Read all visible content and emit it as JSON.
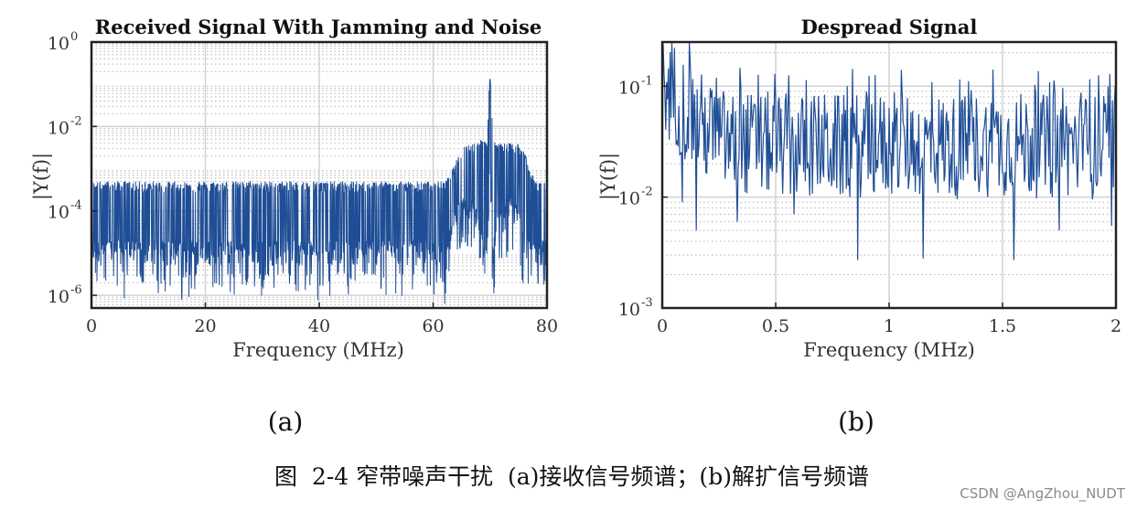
{
  "chart_data": [
    {
      "type": "line",
      "title": "Received Signal With Jamming and Noise",
      "xlabel": "Frequency (MHz)",
      "ylabel": "|Y(f)|",
      "xlim": [
        0,
        80
      ],
      "ylim": [
        5e-07,
        1
      ],
      "yscale": "log",
      "grid": true,
      "minor_grid": true,
      "xticks": [
        0,
        20,
        40,
        60,
        80
      ],
      "xtick_labels": [
        "0",
        "20",
        "40",
        "60",
        "80"
      ],
      "yticks": [
        1e-06,
        0.0001,
        0.01,
        1
      ],
      "ytick_bases": [
        "10",
        "10",
        "10",
        "10"
      ],
      "ytick_exps": [
        "-6",
        "-4",
        "-2",
        "0"
      ],
      "series_color": "#1f4e96",
      "series": [
        {
          "x": [
            0,
            5,
            10,
            15,
            20,
            25,
            30,
            35,
            40,
            45,
            50,
            55,
            60,
            62,
            63,
            64,
            65,
            66,
            67,
            68,
            69,
            69.5,
            69.8,
            70,
            70.2,
            70.5,
            71,
            72,
            73,
            74,
            75,
            76,
            77,
            78,
            80
          ],
          "upper": [
            0.0005,
            0.0005,
            0.0005,
            0.0005,
            0.0005,
            0.0005,
            0.0005,
            0.0005,
            0.0005,
            0.0005,
            0.0005,
            0.0005,
            0.0005,
            0.0005,
            0.0007,
            0.0015,
            0.003,
            0.004,
            0.004,
            0.005,
            0.005,
            0.005,
            0.08,
            0.15,
            0.08,
            0.005,
            0.004,
            0.004,
            0.004,
            0.004,
            0.004,
            0.003,
            0.001,
            0.0005,
            0.0005
          ],
          "lower": [
            5e-06,
            5e-06,
            5e-06,
            5e-06,
            5e-06,
            5e-06,
            5e-06,
            5e-06,
            5e-06,
            5e-06,
            5e-06,
            5e-06,
            5e-06,
            4e-06,
            1e-05,
            3e-05,
            5e-05,
            6e-05,
            5e-05,
            2e-05,
            5e-06,
            3e-06,
            0.0002,
            0.0006,
            0.0002,
            3e-06,
            2e-05,
            5e-05,
            5e-05,
            5e-05,
            3e-05,
            1e-05,
            5e-06,
            5e-06,
            5e-06
          ]
        }
      ]
    },
    {
      "type": "line",
      "title": "Despread Signal",
      "xlabel": "Frequency (MHz)",
      "ylabel": "|Y(f)|",
      "xlim": [
        0,
        2
      ],
      "ylim": [
        0.001,
        0.25
      ],
      "yscale": "log",
      "grid": true,
      "minor_grid": true,
      "xticks": [
        0,
        0.5,
        1,
        1.5,
        2
      ],
      "xtick_labels": [
        "0",
        "0.5",
        "1",
        "1.5",
        "2"
      ],
      "yticks": [
        0.001,
        0.01,
        0.1
      ],
      "ytick_bases": [
        "10",
        "10",
        "10"
      ],
      "ytick_exps": [
        "-3",
        "-2",
        "-1"
      ],
      "series_color": "#1f4e96",
      "series": [
        {
          "x": [
            0,
            0.05,
            0.1,
            0.2,
            0.3,
            0.4,
            0.5,
            0.6,
            0.7,
            0.8,
            0.9,
            1.0,
            1.1,
            1.2,
            1.3,
            1.4,
            1.5,
            1.6,
            1.7,
            1.8,
            1.9,
            2.0
          ],
          "median": [
            0.1,
            0.09,
            0.06,
            0.04,
            0.03,
            0.03,
            0.03,
            0.028,
            0.03,
            0.028,
            0.03,
            0.028,
            0.03,
            0.03,
            0.028,
            0.03,
            0.03,
            0.03,
            0.028,
            0.03,
            0.028,
            0.03
          ],
          "deep_dips": [
            [
              0.09,
              0.009
            ],
            [
              0.15,
              0.005
            ],
            [
              0.33,
              0.006
            ],
            [
              0.58,
              0.007
            ],
            [
              0.86,
              0.0027
            ],
            [
              1.15,
              0.0028
            ],
            [
              1.55,
              0.0027
            ],
            [
              1.75,
              0.005
            ],
            [
              1.98,
              0.0055
            ]
          ]
        }
      ]
    }
  ],
  "panel_labels": [
    "(a)",
    "(b)"
  ],
  "caption": "图  2-4 窄带噪声干扰  (a)接收信号频谱；(b)解扩信号频谱",
  "watermark": "CSDN @AngZhou_NUDT"
}
